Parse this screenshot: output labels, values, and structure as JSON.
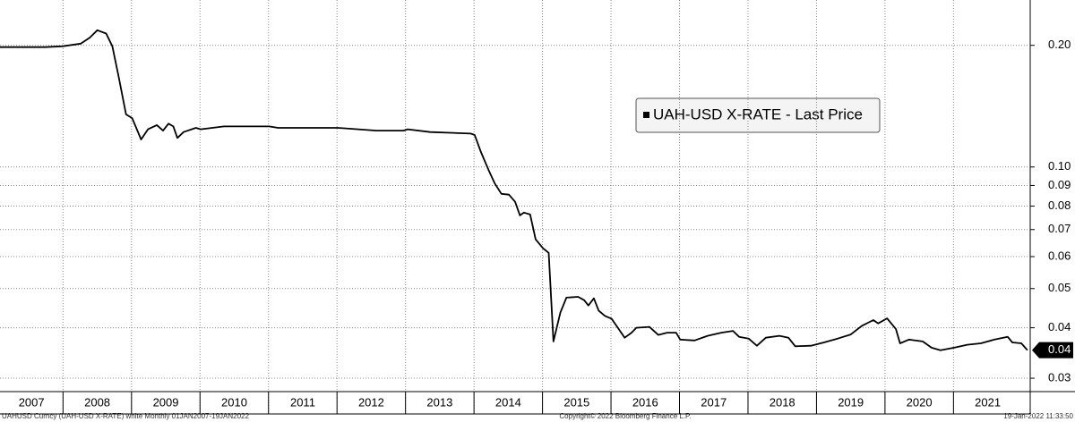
{
  "chart_data": {
    "type": "line",
    "log_scale": true,
    "grid": true,
    "x": [
      2007.08,
      2007.74,
      2008.0,
      2008.26,
      2008.39,
      2008.5,
      2008.63,
      2008.72,
      2008.81,
      2008.92,
      2009.01,
      2009.14,
      2009.24,
      2009.37,
      2009.46,
      2009.54,
      2009.61,
      2009.67,
      2009.76,
      2009.94,
      2010.01,
      2010.35,
      2011.01,
      2011.14,
      2012.01,
      2012.58,
      2012.97,
      2013.03,
      2013.36,
      2013.95,
      2014.01,
      2014.1,
      2014.21,
      2014.3,
      2014.4,
      2014.51,
      2014.6,
      2014.67,
      2014.73,
      2014.82,
      2014.9,
      2015.01,
      2015.09,
      2015.16,
      2015.26,
      2015.35,
      2015.52,
      2015.61,
      2015.67,
      2015.75,
      2015.82,
      2015.91,
      2016.01,
      2016.1,
      2016.2,
      2016.3,
      2016.37,
      2016.56,
      2016.69,
      2016.82,
      2016.95,
      2017.01,
      2017.22,
      2017.41,
      2017.61,
      2017.78,
      2017.87,
      2018.01,
      2018.13,
      2018.26,
      2018.46,
      2018.59,
      2018.69,
      2018.92,
      2019.11,
      2019.31,
      2019.5,
      2019.66,
      2019.83,
      2019.9,
      2020.03,
      2020.16,
      2020.22,
      2020.35,
      2020.55,
      2020.68,
      2020.81,
      2021.01,
      2021.2,
      2021.4,
      2021.6,
      2021.79,
      2021.86,
      2021.99,
      2022.08
    ],
    "series": [
      {
        "name": "UAH-USD X-RATE - Last Price",
        "color": "#000000",
        "values": [
          0.198,
          0.198,
          0.199,
          0.202,
          0.209,
          0.218,
          0.214,
          0.199,
          0.168,
          0.135,
          0.132,
          0.117,
          0.124,
          0.127,
          0.123,
          0.128,
          0.126,
          0.118,
          0.122,
          0.125,
          0.124,
          0.126,
          0.126,
          0.125,
          0.125,
          0.123,
          0.123,
          0.124,
          0.122,
          0.121,
          0.12,
          0.109,
          0.0985,
          0.0912,
          0.0858,
          0.0854,
          0.082,
          0.0759,
          0.0771,
          0.0763,
          0.0662,
          0.0629,
          0.0613,
          0.037,
          0.0436,
          0.0475,
          0.0477,
          0.0468,
          0.0454,
          0.0473,
          0.0441,
          0.0428,
          0.0421,
          0.04,
          0.0378,
          0.0389,
          0.04,
          0.0402,
          0.0384,
          0.0389,
          0.0389,
          0.0374,
          0.0372,
          0.0382,
          0.0389,
          0.0393,
          0.038,
          0.0376,
          0.0361,
          0.0378,
          0.0382,
          0.0378,
          0.036,
          0.0361,
          0.0368,
          0.0376,
          0.0385,
          0.0404,
          0.0418,
          0.041,
          0.0422,
          0.0397,
          0.0366,
          0.0374,
          0.037,
          0.0357,
          0.0352,
          0.0357,
          0.0363,
          0.0366,
          0.0374,
          0.038,
          0.0368,
          0.0366,
          0.0352
        ]
      }
    ],
    "xlim": [
      2007.08,
      2022.12
    ],
    "xticks": [
      2007,
      2008,
      2009,
      2010,
      2011,
      2012,
      2013,
      2014,
      2015,
      2016,
      2017,
      2018,
      2019,
      2020,
      2021
    ],
    "ylim": [
      0.0278,
      0.259
    ],
    "yticks": [
      {
        "value": 0.2,
        "label": "0.20"
      },
      {
        "value": 0.1,
        "label": "0.10"
      },
      0.09,
      0.08,
      0.07,
      0.06,
      0.05,
      0.04,
      0.03
    ],
    "last_price": {
      "value": 0.0352,
      "label": "0.04"
    },
    "source": "UAHUSD Curncy (UAH-USD X-RATE) white  Monthly 01JAN2007-19JAN2022",
    "copyright": "Copyright© 2022 Bloomberg Finance L.P.",
    "timestamp": "19-Jan-2022 11:33:50"
  }
}
